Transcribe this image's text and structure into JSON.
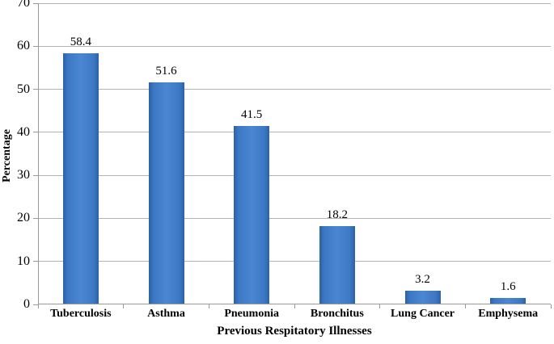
{
  "chart_data": {
    "type": "bar",
    "categories": [
      "Tuberculosis",
      "Asthma",
      "Pneumonia",
      "Bronchitus",
      "Lung Cancer",
      "Emphysema"
    ],
    "values": [
      58.4,
      51.6,
      41.5,
      18.2,
      3.2,
      1.6
    ],
    "value_labels": [
      "58.4",
      "51.6",
      "41.5",
      "18.2",
      "3.2",
      "1.6"
    ],
    "title": "",
    "xlabel": "Previous Respitatory Illnesses",
    "ylabel": "Percentage",
    "ylim": [
      0,
      70
    ],
    "yticks": [
      0,
      10,
      20,
      30,
      40,
      50,
      60,
      70
    ],
    "grid": true,
    "legend": "none",
    "colors": {
      "bar_center": "#4a86d2",
      "bar_edge": "#2d61a8",
      "gridline": "#b4b4b4",
      "axis": "#9a9a9a",
      "text": "#000000",
      "background": "#ffffff"
    }
  }
}
